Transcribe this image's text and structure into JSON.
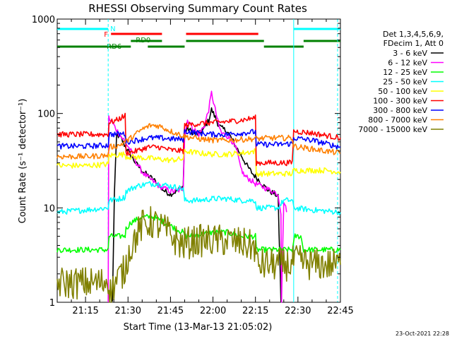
{
  "chart_data": {
    "type": "line",
    "title": "RHESSI Observing Summary Count Rates",
    "xlabel": "Start Time (13-Mar-13 21:05:02)",
    "ylabel": "Count Rate (s⁻¹ detector⁻¹)",
    "yscale": "log",
    "ylim": [
      1,
      1000
    ],
    "xlim_minutes": [
      0,
      100
    ],
    "x_ticks": [
      {
        "label": "21:15",
        "minute": 10
      },
      {
        "label": "21:30",
        "minute": 25
      },
      {
        "label": "21:45",
        "minute": 40
      },
      {
        "label": "22:00",
        "minute": 55
      },
      {
        "label": "22:15",
        "minute": 70
      },
      {
        "label": "22:30",
        "minute": 85
      },
      {
        "label": "22:45",
        "minute": 100
      }
    ],
    "y_ticks": [
      {
        "label": "1",
        "value": 1
      },
      {
        "label": "10",
        "value": 10
      },
      {
        "label": "100",
        "value": 100
      },
      {
        "label": "1000",
        "value": 1000
      }
    ],
    "legend_header": [
      "Det 1,3,4,5,6,9,",
      "FDecim 1, Att 0"
    ],
    "legend_position": "right",
    "timestamp": "23-Oct-2021 22:28",
    "flags": {
      "N": {
        "label": "N",
        "color": "#00ffff",
        "segments": [
          [
            0,
            18
          ],
          [
            83.5,
            100
          ]
        ]
      },
      "F": {
        "label": "F",
        "color": "#ff0000",
        "segments": [
          [
            19,
            37
          ],
          [
            45.5,
            71
          ]
        ]
      },
      "RD0": {
        "label": "RD0",
        "color": "#008000",
        "segments": [
          [
            26,
            37
          ],
          [
            45.5,
            73
          ],
          [
            87,
            100
          ]
        ]
      },
      "RD6": {
        "label": "RD6",
        "color": "#008000",
        "segments": [
          [
            0,
            26
          ],
          [
            32,
            45
          ],
          [
            73,
            87
          ]
        ]
      }
    },
    "vlines": [
      {
        "minute": 18,
        "style": "dashed"
      },
      {
        "minute": 83.5,
        "style": "solid"
      },
      {
        "minute": 99,
        "style": "dashed"
      }
    ],
    "series": [
      {
        "name": "3 - 6 keV",
        "color": "#000000",
        "points": [
          [
            19.5,
            1
          ],
          [
            20.2,
            14
          ],
          [
            21,
            60
          ],
          [
            22.5,
            55
          ],
          [
            24,
            45
          ],
          [
            26,
            36
          ],
          [
            28,
            29
          ],
          [
            30,
            25
          ],
          [
            32,
            22
          ],
          [
            34,
            20
          ],
          [
            36,
            17
          ],
          [
            38,
            15
          ],
          [
            40,
            14
          ],
          [
            42,
            15
          ],
          [
            44.5,
            17
          ],
          [
            45,
            60
          ],
          [
            46,
            70
          ],
          [
            48,
            62
          ],
          [
            50,
            60
          ],
          [
            52,
            70
          ],
          [
            53.5,
            85
          ],
          [
            54.5,
            110
          ],
          [
            55.5,
            95
          ],
          [
            57,
            75
          ],
          [
            58,
            70
          ],
          [
            60,
            65
          ],
          [
            61.5,
            55
          ],
          [
            63,
            45
          ],
          [
            65,
            36
          ],
          [
            67,
            28
          ],
          [
            69,
            23
          ],
          [
            71,
            20
          ],
          [
            73,
            17
          ],
          [
            75,
            15
          ],
          [
            77,
            14
          ],
          [
            78,
            13
          ],
          [
            79,
            1
          ]
        ]
      },
      {
        "name": "6 - 12 keV",
        "color": "#ff00ff",
        "points": [
          [
            18,
            1
          ],
          [
            18.2,
            90
          ],
          [
            20,
            75
          ],
          [
            22,
            60
          ],
          [
            24,
            50
          ],
          [
            26,
            40
          ],
          [
            28,
            30
          ],
          [
            30,
            24
          ],
          [
            32,
            21
          ],
          [
            34,
            19
          ],
          [
            36,
            17
          ],
          [
            38,
            16
          ],
          [
            40,
            15
          ],
          [
            42,
            15
          ],
          [
            44.5,
            16
          ],
          [
            45,
            60
          ],
          [
            46,
            85
          ],
          [
            48,
            70
          ],
          [
            50,
            60
          ],
          [
            52,
            75
          ],
          [
            53.5,
            110
          ],
          [
            54.5,
            165
          ],
          [
            55.5,
            120
          ],
          [
            57,
            75
          ],
          [
            58,
            62
          ],
          [
            60,
            58
          ],
          [
            62,
            50
          ],
          [
            63.5,
            40
          ],
          [
            64.5,
            28
          ],
          [
            66,
            22
          ],
          [
            68,
            20
          ],
          [
            70,
            18
          ],
          [
            72,
            17
          ],
          [
            74,
            16
          ],
          [
            76,
            15
          ],
          [
            78,
            14
          ],
          [
            79,
            9
          ],
          [
            79.2,
            1
          ],
          [
            80,
            12
          ],
          [
            81,
            9
          ]
        ]
      },
      {
        "name": "12 - 25 keV",
        "color": "#00ff00",
        "points": [
          [
            0,
            3.6
          ],
          [
            15,
            3.6
          ],
          [
            18,
            3.6
          ],
          [
            18.3,
            5
          ],
          [
            22,
            5
          ],
          [
            24,
            5.1
          ],
          [
            24.3,
            6
          ],
          [
            26,
            7
          ],
          [
            30,
            8
          ],
          [
            34,
            8
          ],
          [
            38,
            7
          ],
          [
            42,
            6
          ],
          [
            44.5,
            5.5
          ],
          [
            45,
            5
          ],
          [
            50,
            5.2
          ],
          [
            55,
            5.5
          ],
          [
            60,
            5.5
          ],
          [
            65,
            5
          ],
          [
            70,
            5
          ],
          [
            70.3,
            3.6
          ],
          [
            83,
            3.6
          ],
          [
            84,
            5
          ],
          [
            86,
            5
          ],
          [
            87,
            3.6
          ],
          [
            100,
            3.6
          ]
        ]
      },
      {
        "name": "25 - 50 keV",
        "color": "#00ffff",
        "points": [
          [
            0,
            9
          ],
          [
            10,
            9.5
          ],
          [
            18,
            10
          ],
          [
            18.3,
            12
          ],
          [
            22,
            12.5
          ],
          [
            24,
            13
          ],
          [
            24.3,
            15
          ],
          [
            28,
            17
          ],
          [
            32,
            18
          ],
          [
            36,
            18
          ],
          [
            40,
            17
          ],
          [
            44.5,
            16
          ],
          [
            45,
            12
          ],
          [
            50,
            12
          ],
          [
            55,
            12.5
          ],
          [
            60,
            12.5
          ],
          [
            65,
            12
          ],
          [
            70,
            12
          ],
          [
            70.3,
            10
          ],
          [
            78,
            10
          ],
          [
            80,
            12
          ],
          [
            83,
            12
          ],
          [
            83.5,
            10
          ],
          [
            90,
            9.5
          ],
          [
            100,
            9
          ]
        ]
      },
      {
        "name": "50 - 100 keV",
        "color": "#ffff00",
        "points": [
          [
            0,
            28
          ],
          [
            10,
            28
          ],
          [
            18,
            29
          ],
          [
            18.3,
            36
          ],
          [
            24,
            37
          ],
          [
            24.3,
            35
          ],
          [
            30,
            34
          ],
          [
            35,
            33
          ],
          [
            40,
            32
          ],
          [
            44.5,
            33
          ],
          [
            45,
            40
          ],
          [
            50,
            38
          ],
          [
            55,
            37
          ],
          [
            60,
            37
          ],
          [
            65,
            38
          ],
          [
            70,
            40
          ],
          [
            70.3,
            23
          ],
          [
            83,
            23
          ],
          [
            83.5,
            25
          ],
          [
            90,
            25
          ],
          [
            95,
            25
          ],
          [
            100,
            24
          ]
        ]
      },
      {
        "name": "100 - 300 keV",
        "color": "#ff0000",
        "points": [
          [
            0,
            60
          ],
          [
            10,
            60
          ],
          [
            18,
            60
          ],
          [
            18.3,
            80
          ],
          [
            21,
            85
          ],
          [
            24,
            95
          ],
          [
            24.3,
            38
          ],
          [
            28,
            40
          ],
          [
            32,
            44
          ],
          [
            36,
            44
          ],
          [
            40,
            41
          ],
          [
            44.5,
            40
          ],
          [
            45,
            75
          ],
          [
            50,
            78
          ],
          [
            55,
            80
          ],
          [
            60,
            82
          ],
          [
            65,
            85
          ],
          [
            70,
            90
          ],
          [
            70.3,
            30
          ],
          [
            78,
            30
          ],
          [
            83,
            30
          ],
          [
            83.5,
            65
          ],
          [
            90,
            62
          ],
          [
            100,
            55
          ]
        ]
      },
      {
        "name": "300 - 800 keV",
        "color": "#0000ff",
        "points": [
          [
            0,
            45
          ],
          [
            10,
            45
          ],
          [
            18,
            46
          ],
          [
            18.3,
            60
          ],
          [
            24,
            61
          ],
          [
            24.3,
            50
          ],
          [
            28,
            52
          ],
          [
            32,
            55
          ],
          [
            36,
            55
          ],
          [
            40,
            54
          ],
          [
            44.5,
            53
          ],
          [
            45,
            65
          ],
          [
            50,
            62
          ],
          [
            55,
            60
          ],
          [
            60,
            60
          ],
          [
            65,
            62
          ],
          [
            70,
            64
          ],
          [
            70.3,
            47
          ],
          [
            78,
            47
          ],
          [
            83,
            48
          ],
          [
            83.5,
            55
          ],
          [
            90,
            52
          ],
          [
            100,
            44
          ]
        ]
      },
      {
        "name": "800 - 7000 keV",
        "color": "#ff8000",
        "points": [
          [
            0,
            35
          ],
          [
            10,
            35
          ],
          [
            18,
            36
          ],
          [
            18.3,
            44
          ],
          [
            22,
            46
          ],
          [
            26,
            55
          ],
          [
            30,
            68
          ],
          [
            33,
            75
          ],
          [
            36,
            74
          ],
          [
            40,
            65
          ],
          [
            44.5,
            58
          ],
          [
            45,
            57
          ],
          [
            50,
            54
          ],
          [
            55,
            52
          ],
          [
            60,
            52
          ],
          [
            65,
            53
          ],
          [
            70,
            54
          ],
          [
            75,
            55
          ],
          [
            80,
            55
          ],
          [
            83,
            55
          ],
          [
            83.5,
            45
          ],
          [
            90,
            42
          ],
          [
            100,
            38
          ]
        ]
      },
      {
        "name": "7000 - 15000 keV",
        "color": "#808000",
        "points": [
          [
            0,
            1.6
          ],
          [
            8,
            1.6
          ],
          [
            16,
            1.6
          ],
          [
            18,
            1.8
          ],
          [
            18.5,
            1.2
          ],
          [
            20,
            1.5
          ],
          [
            22,
            1.9
          ],
          [
            24,
            2.2
          ],
          [
            25,
            3.2
          ],
          [
            27,
            4.5
          ],
          [
            30,
            6.5
          ],
          [
            33,
            7
          ],
          [
            36,
            6.5
          ],
          [
            39,
            5.5
          ],
          [
            42,
            4.5
          ],
          [
            44.5,
            4
          ],
          [
            45,
            4.2
          ],
          [
            50,
            4.5
          ],
          [
            55,
            4.5
          ],
          [
            60,
            4.5
          ],
          [
            65,
            4.2
          ],
          [
            70,
            3.8
          ],
          [
            70.5,
            2.5
          ],
          [
            78,
            2.5
          ],
          [
            83,
            2.5
          ],
          [
            83.5,
            2.8
          ],
          [
            90,
            2.5
          ],
          [
            100,
            2.5
          ]
        ]
      }
    ]
  }
}
